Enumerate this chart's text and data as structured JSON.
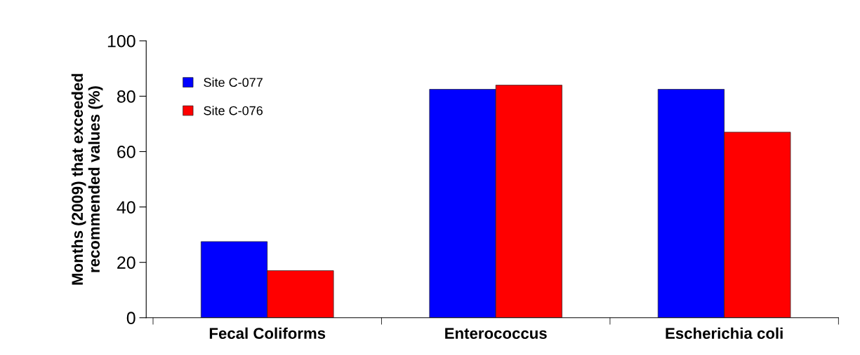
{
  "chart_data": {
    "type": "bar",
    "ylabel": "Months (2009) that exceeded\nrecommended values (%)",
    "categories": [
      "Fecal Coliforms",
      "Enterococcus",
      "Escherichia coli"
    ],
    "series": [
      {
        "name": "Site C-077",
        "color": "#0000ff",
        "values": [
          27.5,
          82.5,
          82.5
        ]
      },
      {
        "name": "Site C-076",
        "color": "#ff0000",
        "values": [
          17,
          84,
          67
        ]
      }
    ],
    "ylim": [
      0,
      100
    ],
    "yticks": [
      0,
      20,
      40,
      60,
      80,
      100
    ],
    "grid": false,
    "legend": "top left"
  }
}
